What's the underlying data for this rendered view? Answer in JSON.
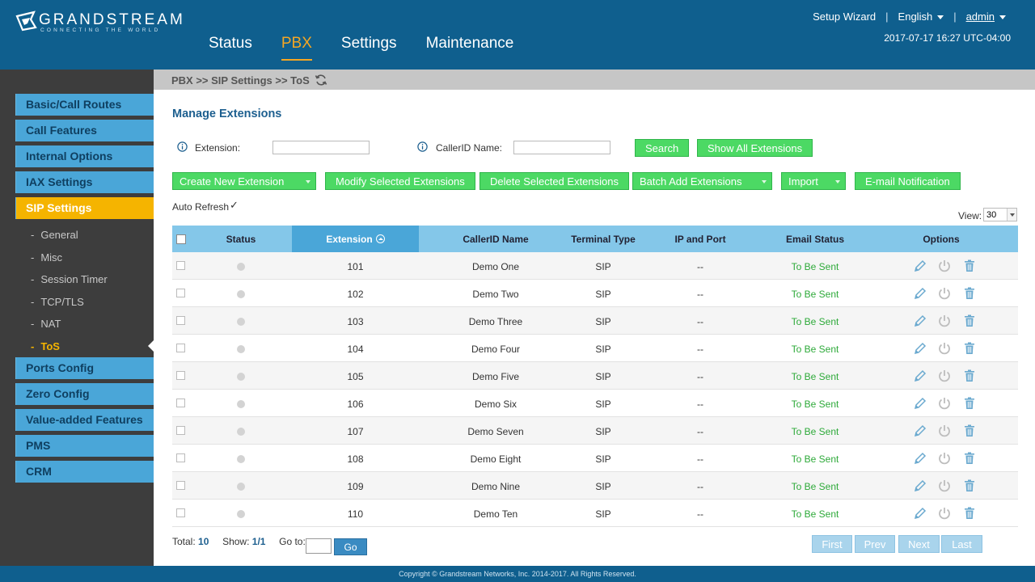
{
  "header": {
    "logo_word": "GRANDSTREAM",
    "logo_tagline": "CONNECTING THE WORLD",
    "nav": [
      "Status",
      "PBX",
      "Settings",
      "Maintenance"
    ],
    "active_nav": "PBX",
    "setup_wizard": "Setup Wizard",
    "language": "English",
    "user": "admin",
    "separator": "|",
    "datetime": "2017-07-17 16:27 UTC-04:00"
  },
  "sidebar": {
    "items": [
      "Basic/Call Routes",
      "Call Features",
      "Internal Options",
      "IAX Settings",
      "SIP Settings",
      "Ports Config",
      "Zero Config",
      "Value-added Features",
      "PMS",
      "CRM"
    ],
    "active_item": "SIP Settings",
    "sub_items": [
      "General",
      "Misc",
      "Session Timer",
      "TCP/TLS",
      "NAT",
      "ToS"
    ],
    "active_sub": "ToS"
  },
  "breadcrumb": "PBX >> SIP Settings >> ToS",
  "page": {
    "title": "Manage Extensions",
    "extension_label": "Extension:",
    "extension_value": "",
    "callerid_label": "CallerID Name:",
    "callerid_value": "",
    "search_button": "Search",
    "show_all_button": "Show All Extensions",
    "actions": {
      "create": "Create New Extension",
      "modify": "Modify Selected Extensions",
      "delete": "Delete Selected Extensions",
      "batch_add": "Batch Add Extensions",
      "import": "Import",
      "email": "E-mail Notification"
    },
    "auto_refresh_label": "Auto Refresh",
    "auto_refresh_mark": "✓",
    "view_label": "View:",
    "view_value": "30"
  },
  "table": {
    "headers": {
      "status": "Status",
      "extension": "Extension",
      "callerid": "CallerID Name",
      "terminal": "Terminal Type",
      "ip": "IP and Port",
      "email": "Email Status",
      "options": "Options"
    },
    "rows": [
      {
        "ext": "101",
        "name": "Demo One",
        "type": "SIP",
        "ip": "--",
        "email": "To Be Sent"
      },
      {
        "ext": "102",
        "name": "Demo Two",
        "type": "SIP",
        "ip": "--",
        "email": "To Be Sent"
      },
      {
        "ext": "103",
        "name": "Demo Three",
        "type": "SIP",
        "ip": "--",
        "email": "To Be Sent"
      },
      {
        "ext": "104",
        "name": "Demo Four",
        "type": "SIP",
        "ip": "--",
        "email": "To Be Sent"
      },
      {
        "ext": "105",
        "name": "Demo Five",
        "type": "SIP",
        "ip": "--",
        "email": "To Be Sent"
      },
      {
        "ext": "106",
        "name": "Demo Six",
        "type": "SIP",
        "ip": "--",
        "email": "To Be Sent"
      },
      {
        "ext": "107",
        "name": "Demo Seven",
        "type": "SIP",
        "ip": "--",
        "email": "To Be Sent"
      },
      {
        "ext": "108",
        "name": "Demo Eight",
        "type": "SIP",
        "ip": "--",
        "email": "To Be Sent"
      },
      {
        "ext": "109",
        "name": "Demo Nine",
        "type": "SIP",
        "ip": "--",
        "email": "To Be Sent"
      },
      {
        "ext": "110",
        "name": "Demo Ten",
        "type": "SIP",
        "ip": "--",
        "email": "To Be Sent"
      }
    ]
  },
  "pager": {
    "total_label": "Total:",
    "total": "10",
    "show_label": "Show:",
    "show": "1/1",
    "goto_label": "Go to:",
    "goto_value": "",
    "go_button": "Go",
    "buttons": [
      "First",
      "Prev",
      "Next",
      "Last"
    ]
  },
  "footer": "Copyright © Grandstream Networks, Inc. 2014-2017. All Rights Reserved.",
  "colors": {
    "header_bg": "#0f5f8e",
    "accent_orange": "#f5a623",
    "sidebar_active": "#f5b400",
    "sidebar_item": "#4aa6d8",
    "green_button": "#4cd964",
    "email_status": "#2eaa3a"
  },
  "icons": {
    "refresh": "refresh-icon",
    "info": "info-icon",
    "edit": "pencil-icon",
    "register": "power-icon",
    "delete": "trash-icon"
  }
}
